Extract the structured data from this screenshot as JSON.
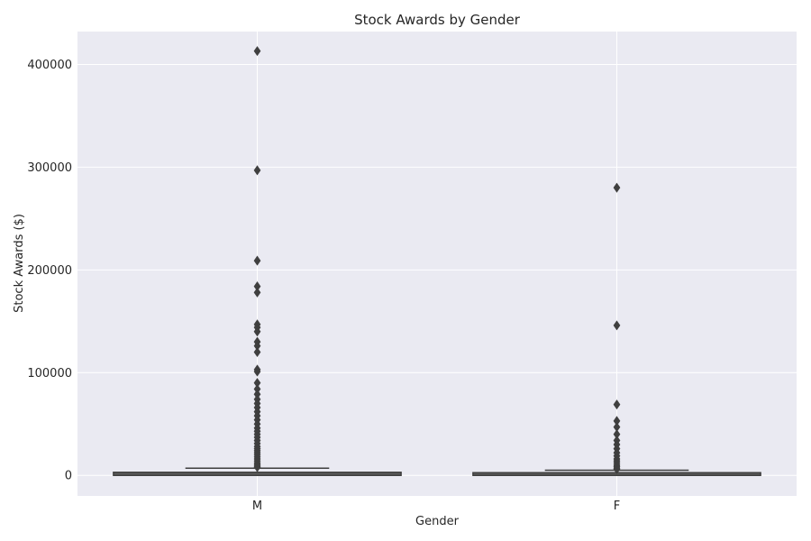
{
  "chart_data": {
    "type": "box",
    "title": "Stock Awards by Gender",
    "xlabel": "Gender",
    "ylabel": "Stock Awards ($)",
    "categories": [
      "M",
      "F"
    ],
    "ylim": [
      -20000,
      432000
    ],
    "yticks": [
      0,
      100000,
      200000,
      300000,
      400000
    ],
    "grid": true,
    "colors": {
      "plot_bg": "#eaeaf2",
      "grid": "#ffffff",
      "box_edge": "#3f3f3f",
      "box_fill": "#5a5a5a"
    },
    "boxes": [
      {
        "category": "M",
        "q1": 0,
        "median": 0,
        "q3": 3000,
        "whisker_low": 0,
        "whisker_high": 7000,
        "outliers": [
          413000,
          297000,
          209000,
          184000,
          178000,
          147000,
          144000,
          140000,
          130000,
          126000,
          120000,
          103000,
          101000,
          90000,
          84000,
          79000,
          74000,
          70000,
          66000,
          62000,
          58000,
          54000,
          50000,
          46000,
          43000,
          40000,
          37000,
          34000,
          31000,
          28000,
          26000,
          24000,
          22000,
          20000,
          18000,
          16000,
          14000,
          12000,
          10500,
          9000,
          8000
        ]
      },
      {
        "category": "F",
        "q1": 0,
        "median": 0,
        "q3": 2000,
        "whisker_low": 0,
        "whisker_high": 5000,
        "outliers": [
          280000,
          146000,
          69000,
          53000,
          47000,
          40000,
          34000,
          30000,
          26000,
          22000,
          19000,
          16000,
          14000,
          12000,
          10000,
          8500,
          7000,
          6000
        ]
      }
    ]
  }
}
